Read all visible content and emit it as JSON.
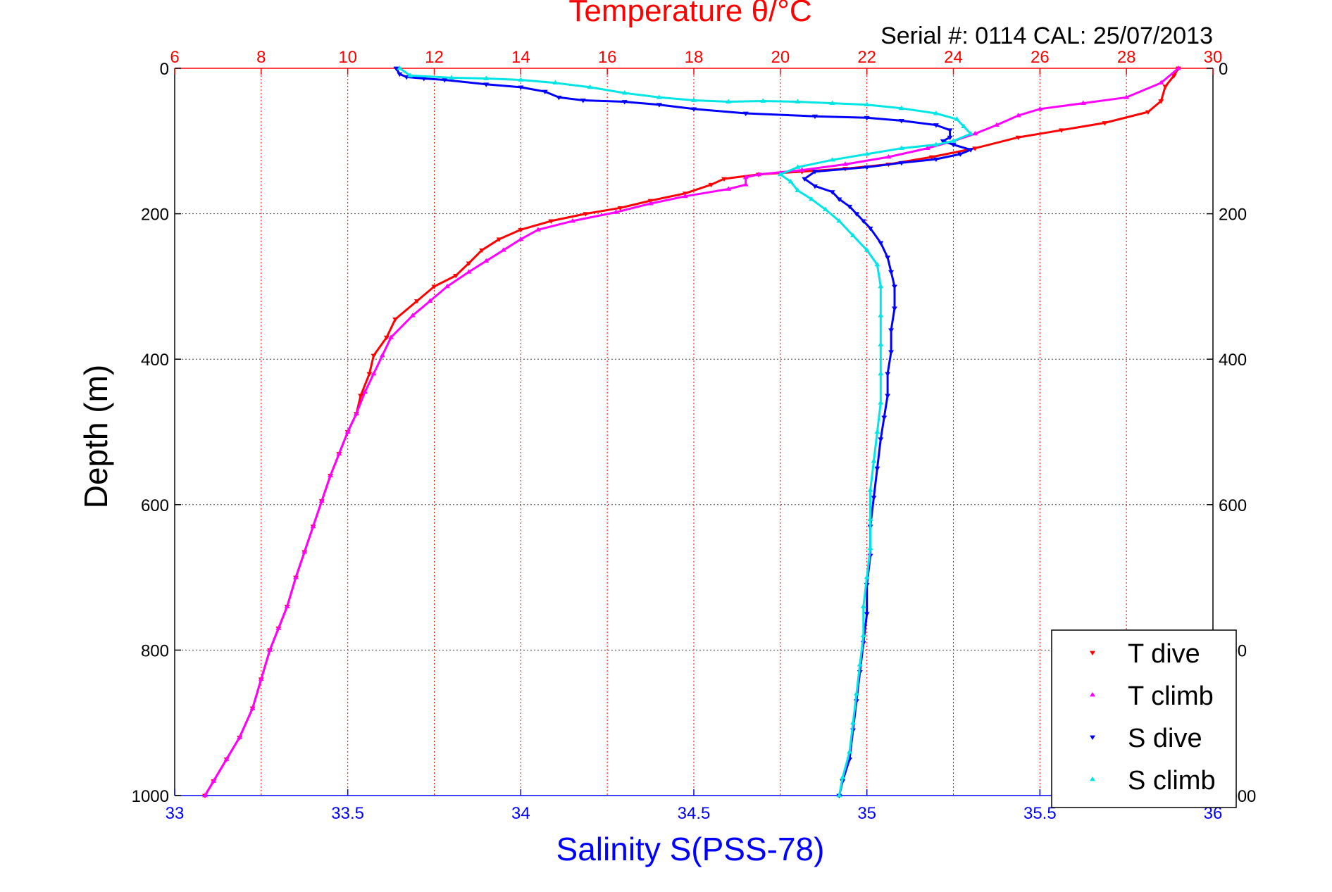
{
  "chart_data": {
    "type": "scatter",
    "title": "Temperature θ/°C",
    "subtitle": "Serial #: 0114  CAL: 25/07/2013",
    "ylabel": "Depth (m)",
    "xlabel_bottom": "Salinity S(PSS-78)",
    "y_axis": {
      "min": 0,
      "max": 1000,
      "reversed": true,
      "ticks": [
        0,
        200,
        400,
        600,
        800,
        1000
      ]
    },
    "x_top": {
      "min": 6,
      "max": 30,
      "ticks": [
        6,
        8,
        10,
        12,
        14,
        16,
        18,
        20,
        22,
        24,
        26,
        28,
        30
      ],
      "color": "#ff0000"
    },
    "x_bottom": {
      "min": 33,
      "max": 36,
      "ticks": [
        33,
        33.5,
        34,
        34.5,
        35,
        35.5,
        36
      ],
      "color": "#0000ff"
    },
    "grid": "on",
    "legend_position": "bottom-right",
    "series": [
      {
        "name": "T dive",
        "axis": "top",
        "color": "#ff0000",
        "marker": "triangle-down",
        "points": [
          [
            29.2,
            0
          ],
          [
            29.1,
            10
          ],
          [
            28.9,
            25
          ],
          [
            28.8,
            45
          ],
          [
            28.5,
            60
          ],
          [
            27.5,
            75
          ],
          [
            26.5,
            85
          ],
          [
            25.5,
            95
          ],
          [
            24.5,
            110
          ],
          [
            23.5,
            122
          ],
          [
            22.5,
            132
          ],
          [
            21.5,
            138
          ],
          [
            20.5,
            142
          ],
          [
            19.5,
            146
          ],
          [
            18.7,
            152
          ],
          [
            18.4,
            160
          ],
          [
            17.8,
            172
          ],
          [
            17.0,
            182
          ],
          [
            16.3,
            192
          ],
          [
            15.5,
            200
          ],
          [
            14.7,
            210
          ],
          [
            14.0,
            222
          ],
          [
            13.5,
            235
          ],
          [
            13.1,
            250
          ],
          [
            12.8,
            268
          ],
          [
            12.5,
            285
          ],
          [
            12.0,
            300
          ],
          [
            11.6,
            320
          ],
          [
            11.1,
            345
          ],
          [
            10.9,
            370
          ],
          [
            10.6,
            395
          ],
          [
            10.5,
            420
          ],
          [
            10.3,
            450
          ],
          [
            10.2,
            475
          ],
          [
            10.0,
            500
          ],
          [
            9.8,
            530
          ],
          [
            9.6,
            560
          ],
          [
            9.4,
            595
          ],
          [
            9.2,
            630
          ],
          [
            9.0,
            665
          ],
          [
            8.8,
            700
          ],
          [
            8.6,
            740
          ],
          [
            8.4,
            770
          ],
          [
            8.2,
            800
          ],
          [
            8.0,
            840
          ],
          [
            7.8,
            880
          ],
          [
            7.5,
            920
          ],
          [
            7.2,
            950
          ],
          [
            6.9,
            980
          ],
          [
            6.7,
            1000
          ]
        ]
      },
      {
        "name": "T climb",
        "axis": "top",
        "color": "#ff00ff",
        "marker": "triangle-up",
        "points": [
          [
            29.2,
            0
          ],
          [
            28.8,
            20
          ],
          [
            28.0,
            40
          ],
          [
            27.0,
            48
          ],
          [
            26.0,
            56
          ],
          [
            25.5,
            65
          ],
          [
            25.0,
            78
          ],
          [
            24.5,
            90
          ],
          [
            24.0,
            100
          ],
          [
            23.4,
            110
          ],
          [
            22.5,
            122
          ],
          [
            21.5,
            132
          ],
          [
            20.5,
            140
          ],
          [
            19.5,
            146
          ],
          [
            19.2,
            150
          ],
          [
            19.2,
            160
          ],
          [
            18.8,
            166
          ],
          [
            17.8,
            176
          ],
          [
            17.0,
            186
          ],
          [
            16.2,
            198
          ],
          [
            15.2,
            210
          ],
          [
            14.4,
            222
          ],
          [
            14.0,
            235
          ],
          [
            13.6,
            250
          ],
          [
            13.2,
            265
          ],
          [
            12.8,
            280
          ],
          [
            12.3,
            300
          ],
          [
            11.9,
            320
          ],
          [
            11.5,
            340
          ],
          [
            11.0,
            370
          ],
          [
            10.8,
            395
          ],
          [
            10.6,
            420
          ],
          [
            10.4,
            445
          ],
          [
            10.2,
            475
          ],
          [
            10.0,
            500
          ],
          [
            9.8,
            530
          ],
          [
            9.6,
            560
          ],
          [
            9.4,
            595
          ],
          [
            9.2,
            630
          ],
          [
            9.0,
            665
          ],
          [
            8.8,
            700
          ],
          [
            8.6,
            740
          ],
          [
            8.4,
            770
          ],
          [
            8.2,
            800
          ],
          [
            8.0,
            840
          ],
          [
            7.8,
            880
          ],
          [
            7.5,
            920
          ],
          [
            7.2,
            950
          ],
          [
            6.9,
            980
          ],
          [
            6.7,
            1000
          ]
        ]
      },
      {
        "name": "S dive",
        "axis": "bottom",
        "color": "#0000ff",
        "marker": "triangle-down",
        "points": [
          [
            33.64,
            0
          ],
          [
            33.65,
            8
          ],
          [
            33.67,
            12
          ],
          [
            33.72,
            14
          ],
          [
            33.78,
            16
          ],
          [
            33.9,
            22
          ],
          [
            34.0,
            26
          ],
          [
            34.07,
            32
          ],
          [
            34.11,
            40
          ],
          [
            34.18,
            44
          ],
          [
            34.3,
            46
          ],
          [
            34.4,
            50
          ],
          [
            34.5,
            56
          ],
          [
            34.65,
            62
          ],
          [
            34.85,
            66
          ],
          [
            35.0,
            68
          ],
          [
            35.1,
            72
          ],
          [
            35.2,
            78
          ],
          [
            35.24,
            85
          ],
          [
            35.24,
            95
          ],
          [
            35.22,
            100
          ],
          [
            35.25,
            105
          ],
          [
            35.3,
            112
          ],
          [
            35.27,
            118
          ],
          [
            35.2,
            125
          ],
          [
            35.1,
            130
          ],
          [
            35.0,
            136
          ],
          [
            34.85,
            142
          ],
          [
            34.82,
            152
          ],
          [
            34.85,
            162
          ],
          [
            34.9,
            170
          ],
          [
            34.92,
            180
          ],
          [
            34.95,
            190
          ],
          [
            34.97,
            200
          ],
          [
            34.99,
            210
          ],
          [
            35.01,
            220
          ],
          [
            35.04,
            240
          ],
          [
            35.06,
            260
          ],
          [
            35.07,
            280
          ],
          [
            35.08,
            300
          ],
          [
            35.08,
            330
          ],
          [
            35.07,
            360
          ],
          [
            35.07,
            390
          ],
          [
            35.06,
            420
          ],
          [
            35.06,
            450
          ],
          [
            35.05,
            480
          ],
          [
            35.04,
            510
          ],
          [
            35.03,
            550
          ],
          [
            35.02,
            590
          ],
          [
            35.01,
            630
          ],
          [
            35.01,
            670
          ],
          [
            35.0,
            710
          ],
          [
            35.0,
            750
          ],
          [
            34.99,
            790
          ],
          [
            34.98,
            830
          ],
          [
            34.97,
            870
          ],
          [
            34.96,
            910
          ],
          [
            34.95,
            950
          ],
          [
            34.93,
            980
          ],
          [
            34.92,
            1000
          ]
        ]
      },
      {
        "name": "S climb",
        "axis": "bottom",
        "color": "#00e5e5",
        "marker": "triangle-up",
        "points": [
          [
            33.65,
            0
          ],
          [
            33.68,
            10
          ],
          [
            33.8,
            13
          ],
          [
            33.9,
            14
          ],
          [
            34.0,
            16
          ],
          [
            34.1,
            20
          ],
          [
            34.2,
            26
          ],
          [
            34.3,
            34
          ],
          [
            34.4,
            40
          ],
          [
            34.5,
            44
          ],
          [
            34.6,
            46
          ],
          [
            34.7,
            45
          ],
          [
            34.8,
            46
          ],
          [
            34.9,
            48
          ],
          [
            35.0,
            50
          ],
          [
            35.1,
            55
          ],
          [
            35.2,
            62
          ],
          [
            35.26,
            70
          ],
          [
            35.28,
            80
          ],
          [
            35.3,
            90
          ],
          [
            35.25,
            100
          ],
          [
            35.2,
            105
          ],
          [
            35.1,
            110
          ],
          [
            35.0,
            118
          ],
          [
            34.9,
            126
          ],
          [
            34.8,
            136
          ],
          [
            34.75,
            146
          ],
          [
            34.78,
            156
          ],
          [
            34.8,
            168
          ],
          [
            34.84,
            180
          ],
          [
            34.88,
            194
          ],
          [
            34.92,
            210
          ],
          [
            34.96,
            230
          ],
          [
            35.0,
            250
          ],
          [
            35.03,
            270
          ],
          [
            35.04,
            300
          ],
          [
            35.04,
            340
          ],
          [
            35.04,
            380
          ],
          [
            35.04,
            420
          ],
          [
            35.04,
            460
          ],
          [
            35.03,
            500
          ],
          [
            35.02,
            540
          ],
          [
            35.01,
            580
          ],
          [
            35.01,
            620
          ],
          [
            35.01,
            660
          ],
          [
            35.0,
            700
          ],
          [
            34.99,
            740
          ],
          [
            34.99,
            780
          ],
          [
            34.98,
            820
          ],
          [
            34.97,
            860
          ],
          [
            34.96,
            900
          ],
          [
            34.95,
            940
          ],
          [
            34.93,
            975
          ],
          [
            34.92,
            1000
          ]
        ]
      }
    ]
  }
}
